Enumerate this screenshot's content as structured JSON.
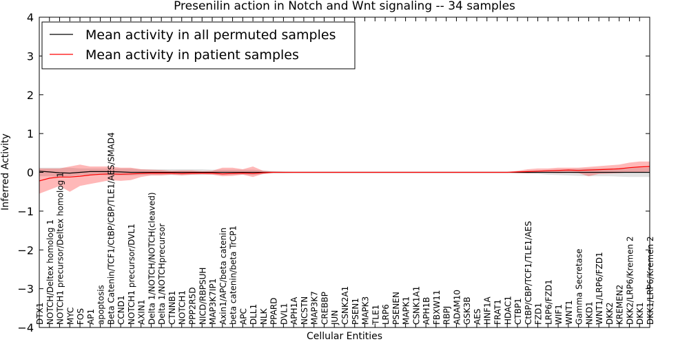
{
  "chart_data": {
    "type": "line",
    "title": "Presenilin action in Notch and Wnt signaling -- 34 samples",
    "xlabel": "Cellular Entities",
    "ylabel": "Inferred Activity",
    "ylim": [
      -4,
      4
    ],
    "yticks": [
      -4,
      -3,
      -2,
      -1,
      0,
      1,
      2,
      3,
      4
    ],
    "legend_position": "top-left",
    "grid": false,
    "categories": [
      "DTX1",
      "NOTCH/Deltex homolog 1",
      "NOTCH1 precursor/Deltex homolog 1",
      "MYC",
      "FOS",
      "AP1",
      "apoptosis",
      "Beta Catenin/TCF1/CtBP/CBP/TLE1/AES/SMAD4",
      "CCND1",
      "NOTCH1 precursor/DVL1",
      "AXIN1",
      "Delta 1/NOTCH/NOTCH(cleaved)",
      "Delta 1/NOTCHprecursor",
      "CTNNB1",
      "NOTCH1",
      "PPP2R5D",
      "NICD/RBPSUH",
      "MAP3K7IP1",
      "Axin1/APC/beta catenin",
      "beta catenin/beta TrCP1",
      "APC",
      "DLL1",
      "NLK",
      "PPARD",
      "DVL1",
      "APH1A",
      "NCSTN",
      "MAP3K7",
      "CREBBP",
      "JUN",
      "CSNK2A1",
      "PSEN1",
      "MAPK3",
      "TLE1",
      "LRP6",
      "PSENEN",
      "MAPK1",
      "CSNK1A1",
      "APH1B",
      "FBXW11",
      "RBPJ",
      "ADAM10",
      "GSK3B",
      "AES",
      "HNF1A",
      "FRAT1",
      "HDAC1",
      "CTBP1",
      "CtBP/CBP/TCF1/TLE1/AES",
      "FZD1",
      "LRP6/FZD1",
      "WIF1",
      "WNT1",
      "Gamma Secretase",
      "NKD1",
      "WNT1/LRP6/FZD1",
      "DKK2",
      "KREMEN2",
      "DKK2/LRP6/Kremen 2",
      "DKK1",
      "DKK1/LRP6/Kremen 2"
    ],
    "series": [
      {
        "name": "Mean activity in all permuted samples",
        "color": "#000000",
        "style": "solid",
        "values": [
          0.03,
          0.01,
          -0.01,
          -0.02,
          0.0,
          0.02,
          0.02,
          0.02,
          0.01,
          0.0,
          0.0,
          0.0,
          0.0,
          0.0,
          0.0,
          0.0,
          0.0,
          0.0,
          0.0,
          0.0,
          0.0,
          0.0,
          0.0,
          0.0,
          0.0,
          0.0,
          0.0,
          0.0,
          0.0,
          0.0,
          0.0,
          0.0,
          0.0,
          0.0,
          0.0,
          0.0,
          0.0,
          0.0,
          0.0,
          0.0,
          0.0,
          0.0,
          0.0,
          0.0,
          0.0,
          0.0,
          0.0,
          0.0,
          0.0,
          0.0,
          0.0,
          0.0,
          0.0,
          0.0,
          0.0,
          0.0,
          0.0,
          0.0,
          0.0,
          0.0,
          0.0
        ],
        "band_lower": [
          -0.1,
          -0.1,
          -0.12,
          -0.1,
          -0.07,
          -0.07,
          -0.07,
          -0.08,
          -0.08,
          -0.08,
          -0.07,
          -0.07,
          -0.07,
          -0.07,
          -0.07,
          -0.07,
          -0.07,
          -0.06,
          -0.06,
          -0.06,
          -0.06,
          -0.07,
          -0.05,
          -0.02,
          -0.02,
          -0.01,
          -0.01,
          -0.01,
          -0.01,
          -0.01,
          -0.01,
          -0.01,
          -0.01,
          -0.01,
          -0.01,
          -0.01,
          -0.01,
          -0.01,
          -0.01,
          -0.01,
          -0.01,
          -0.01,
          -0.01,
          -0.01,
          -0.01,
          -0.01,
          -0.01,
          -0.02,
          -0.03,
          -0.04,
          -0.06,
          -0.07,
          -0.08,
          -0.09,
          -0.1,
          -0.1,
          -0.1,
          -0.11,
          -0.12,
          -0.12,
          -0.12
        ],
        "band_upper": [
          0.12,
          0.12,
          0.12,
          0.12,
          0.1,
          0.1,
          0.1,
          0.1,
          0.1,
          0.1,
          0.08,
          0.08,
          0.08,
          0.08,
          0.08,
          0.08,
          0.08,
          0.07,
          0.07,
          0.07,
          0.07,
          0.07,
          0.05,
          0.03,
          0.02,
          0.01,
          0.01,
          0.01,
          0.01,
          0.01,
          0.01,
          0.01,
          0.01,
          0.01,
          0.01,
          0.01,
          0.01,
          0.01,
          0.01,
          0.01,
          0.01,
          0.01,
          0.01,
          0.01,
          0.01,
          0.01,
          0.01,
          0.02,
          0.03,
          0.04,
          0.06,
          0.07,
          0.08,
          0.09,
          0.1,
          0.1,
          0.1,
          0.11,
          0.12,
          0.12,
          0.12
        ]
      },
      {
        "name": "Mean activity in patient samples",
        "color": "#ff0000",
        "style": "solid",
        "values": [
          -0.22,
          -0.15,
          -0.12,
          -0.12,
          -0.1,
          -0.07,
          -0.05,
          -0.04,
          -0.05,
          -0.04,
          -0.03,
          -0.02,
          -0.02,
          -0.02,
          -0.03,
          -0.02,
          -0.02,
          -0.02,
          -0.04,
          -0.03,
          -0.02,
          -0.03,
          -0.01,
          0.0,
          0.0,
          0.0,
          0.0,
          0.0,
          0.0,
          0.0,
          0.0,
          0.0,
          0.0,
          0.0,
          0.0,
          0.0,
          0.0,
          0.0,
          0.0,
          0.0,
          0.0,
          0.0,
          0.0,
          0.0,
          0.0,
          0.0,
          0.0,
          0.01,
          0.02,
          0.03,
          0.04,
          0.05,
          0.06,
          0.05,
          0.06,
          0.07,
          0.08,
          0.09,
          0.12,
          0.14,
          0.15
        ],
        "band_lower": [
          -0.55,
          -0.45,
          -0.35,
          -0.5,
          -0.35,
          -0.3,
          -0.25,
          -0.2,
          -0.22,
          -0.2,
          -0.12,
          -0.08,
          -0.08,
          -0.06,
          -0.08,
          -0.06,
          -0.05,
          -0.06,
          -0.1,
          -0.09,
          -0.06,
          -0.12,
          -0.04,
          -0.01,
          -0.01,
          -0.01,
          -0.01,
          -0.01,
          -0.01,
          -0.01,
          -0.01,
          -0.01,
          -0.01,
          -0.01,
          -0.01,
          -0.01,
          -0.01,
          -0.01,
          -0.01,
          -0.01,
          -0.01,
          -0.01,
          -0.01,
          -0.01,
          -0.01,
          -0.01,
          -0.01,
          -0.02,
          -0.02,
          -0.01,
          -0.01,
          -0.02,
          -0.01,
          -0.02,
          -0.1,
          -0.04,
          -0.03,
          -0.02,
          0.0,
          0.0,
          0.02
        ],
        "band_upper": [
          0.1,
          0.1,
          0.1,
          0.15,
          0.2,
          0.15,
          0.15,
          0.15,
          0.12,
          0.12,
          0.08,
          0.07,
          0.06,
          0.04,
          0.05,
          0.05,
          0.03,
          0.04,
          0.12,
          0.12,
          0.08,
          0.15,
          0.04,
          0.02,
          0.01,
          0.01,
          0.01,
          0.01,
          0.01,
          0.01,
          0.01,
          0.01,
          0.01,
          0.01,
          0.01,
          0.01,
          0.01,
          0.01,
          0.01,
          0.01,
          0.01,
          0.01,
          0.01,
          0.01,
          0.01,
          0.01,
          0.01,
          0.04,
          0.08,
          0.1,
          0.1,
          0.12,
          0.12,
          0.12,
          0.14,
          0.16,
          0.18,
          0.2,
          0.25,
          0.28,
          0.28
        ]
      }
    ]
  }
}
